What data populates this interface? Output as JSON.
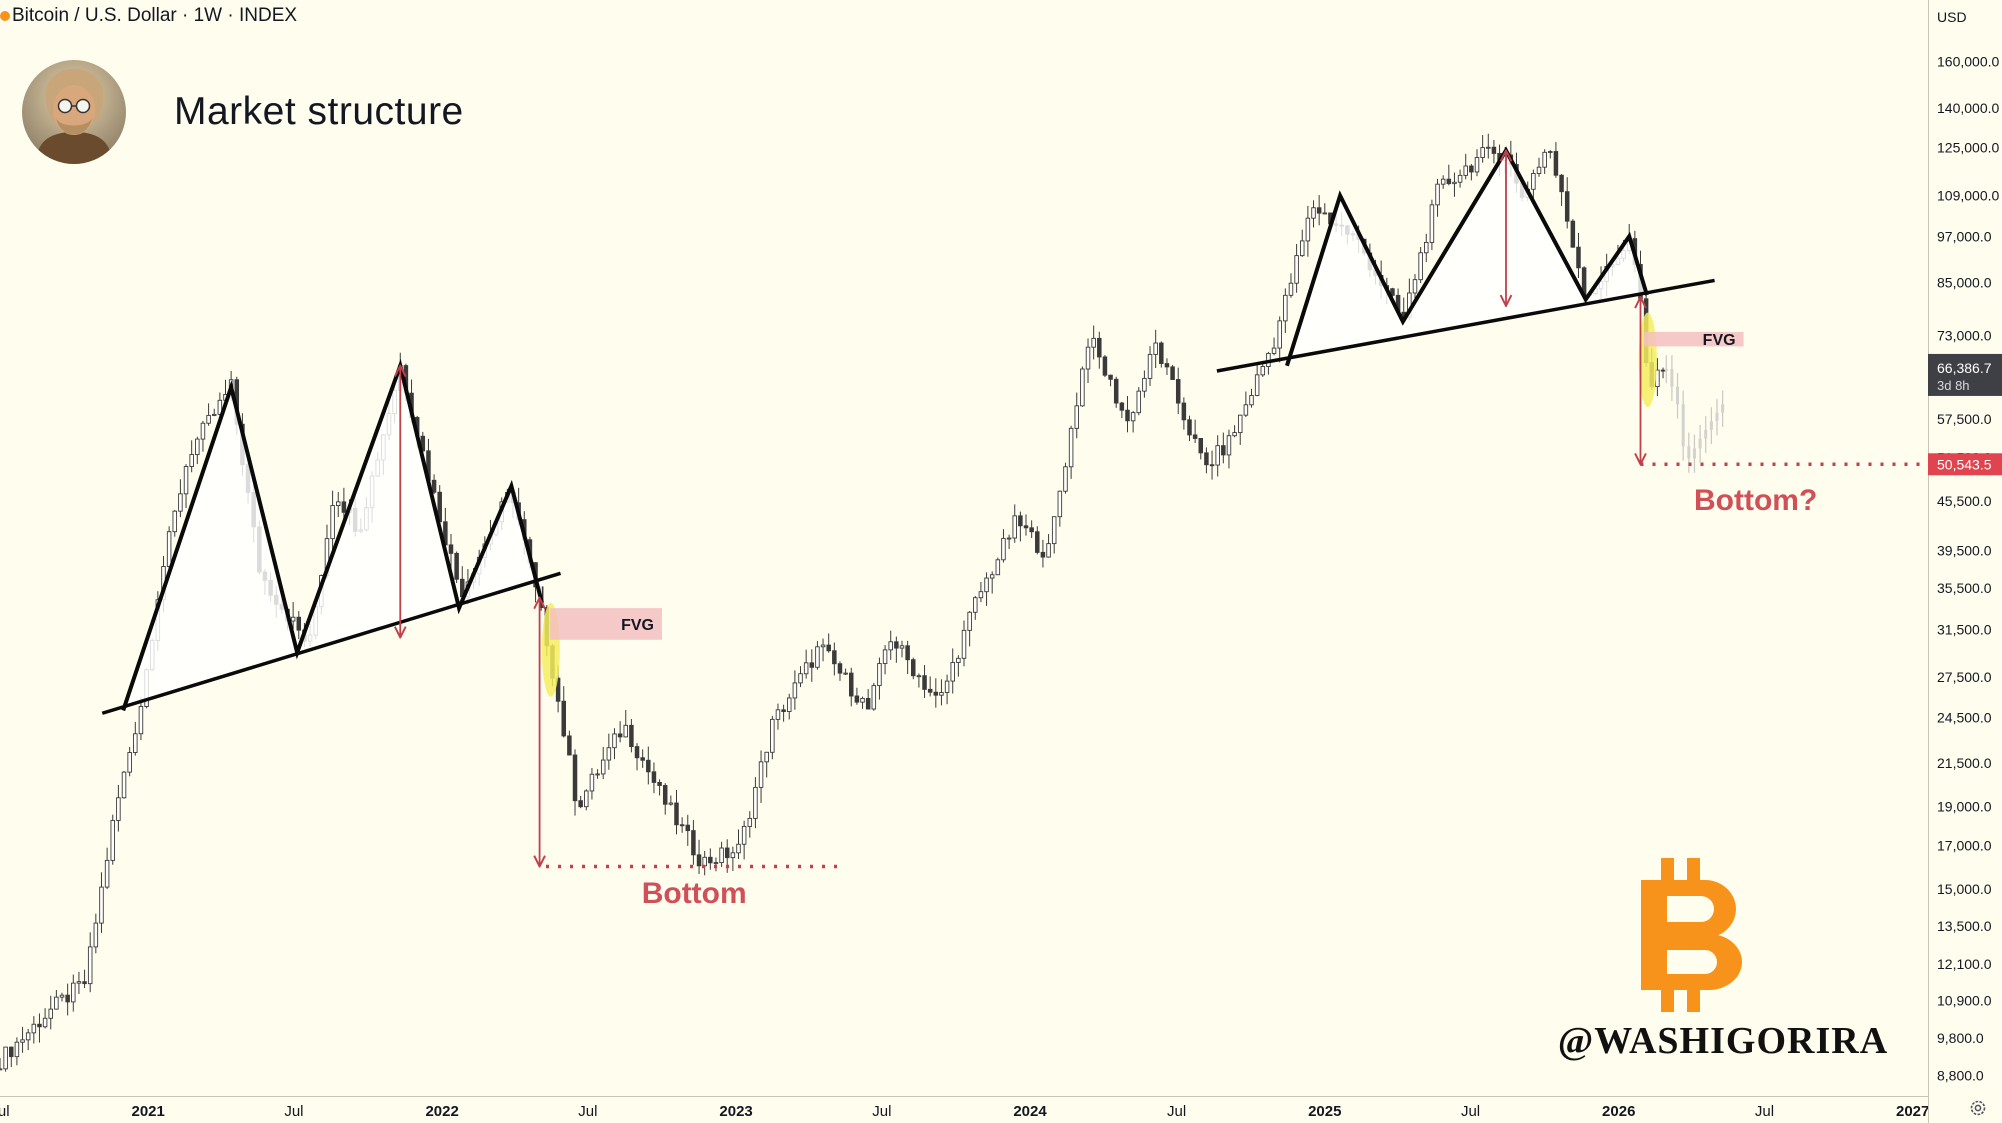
{
  "header": {
    "symbol": "Bitcoin / U.S. Dollar · 1W · INDEX",
    "title": "Market structure"
  },
  "price_axis": {
    "currency": "USD"
  },
  "annotations": {
    "fvg_label": "FVG",
    "bottom_label": "Bottom",
    "bottom_question_label": "Bottom?"
  },
  "watermark": {
    "handle": "@WASHIGORIRA",
    "logo": "bitcoin-logo"
  },
  "last_price": {
    "value": "66,386.7",
    "countdown": "3d 8h"
  },
  "target_price": {
    "value": "50,543.5"
  },
  "colors": {
    "background": "#fffdee",
    "candle": "#3a3a3a",
    "arrow": "#c0404c",
    "bottom_text": "#d05058",
    "fvg_fill": "#f3c0bf",
    "highlight": "#f4ee5e",
    "bitcoin_orange": "#f7931a"
  },
  "chart_data": {
    "type": "candlestick",
    "timeframe": "1W",
    "y_axis": {
      "scale": "log",
      "range": [
        8300,
        175000
      ],
      "ticks": [
        "160,000.0",
        "140,000.0",
        "125,000.0",
        "109,000.0",
        "97,000.0",
        "85,000.0",
        "73,000.0",
        "57,500.0",
        "51,500.0",
        "45,500.0",
        "39,500.0",
        "35,500.0",
        "31,500.0",
        "27,500.0",
        "24,500.0",
        "21,500.0",
        "19,000.0",
        "17,000.0",
        "15,000.0",
        "13,500.0",
        "12,100.0",
        "10,900.0",
        "9,800.0",
        "8,800.0"
      ]
    },
    "x_axis": {
      "range": [
        "2020-07-01",
        "2027-01-20"
      ],
      "ticks": [
        {
          "label": "Jul",
          "date": "2020-07-01"
        },
        {
          "label": "2021",
          "date": "2021-01-01"
        },
        {
          "label": "Jul",
          "date": "2021-07-01"
        },
        {
          "label": "2022",
          "date": "2022-01-01"
        },
        {
          "label": "Jul",
          "date": "2022-07-01"
        },
        {
          "label": "2023",
          "date": "2023-01-01"
        },
        {
          "label": "Jul",
          "date": "2023-07-01"
        },
        {
          "label": "2024",
          "date": "2024-01-01"
        },
        {
          "label": "Jul",
          "date": "2024-07-01"
        },
        {
          "label": "2025",
          "date": "2025-01-01"
        },
        {
          "label": "Jul",
          "date": "2025-07-01"
        },
        {
          "label": "2026",
          "date": "2026-01-01"
        },
        {
          "label": "Jul",
          "date": "2026-07-01"
        },
        {
          "label": "2027",
          "date": "2027-01-01"
        }
      ]
    },
    "price_path": [
      [
        "2020-07-01",
        9200
      ],
      [
        "2020-09-01",
        10600
      ],
      [
        "2020-10-15",
        11500
      ],
      [
        "2020-11-20",
        18500
      ],
      [
        "2020-12-25",
        26000
      ],
      [
        "2021-01-15",
        36000
      ],
      [
        "2021-02-20",
        52000
      ],
      [
        "2021-04-14",
        63000
      ],
      [
        "2021-05-20",
        37000
      ],
      [
        "2021-07-20",
        30000
      ],
      [
        "2021-08-20",
        47000
      ],
      [
        "2021-09-20",
        42000
      ],
      [
        "2021-11-10",
        67000
      ],
      [
        "2021-12-20",
        47000
      ],
      [
        "2022-01-24",
        35000
      ],
      [
        "2022-03-28",
        47000
      ],
      [
        "2022-05-10",
        31000
      ],
      [
        "2022-06-18",
        19000
      ],
      [
        "2022-08-15",
        24000
      ],
      [
        "2022-10-01",
        19500
      ],
      [
        "2022-11-20",
        16200
      ],
      [
        "2023-01-05",
        16800
      ],
      [
        "2023-02-15",
        24000
      ],
      [
        "2023-04-15",
        30000
      ],
      [
        "2023-06-15",
        25000
      ],
      [
        "2023-07-10",
        31000
      ],
      [
        "2023-09-10",
        25500
      ],
      [
        "2023-10-25",
        34000
      ],
      [
        "2023-12-15",
        43000
      ],
      [
        "2024-01-23",
        39000
      ],
      [
        "2024-03-14",
        73000
      ],
      [
        "2024-05-01",
        57000
      ],
      [
        "2024-06-05",
        71000
      ],
      [
        "2024-08-05",
        50000
      ],
      [
        "2024-09-05",
        54000
      ],
      [
        "2024-10-30",
        72000
      ],
      [
        "2024-12-17",
        106000
      ],
      [
        "2025-02-10",
        96000
      ],
      [
        "2025-04-08",
        76000
      ],
      [
        "2025-05-22",
        111000
      ],
      [
        "2025-07-14",
        122000
      ],
      [
        "2025-08-14",
        124000
      ],
      [
        "2025-09-01",
        108000
      ],
      [
        "2025-10-06",
        126000
      ],
      [
        "2025-11-21",
        82000
      ],
      [
        "2025-12-20",
        88000
      ],
      [
        "2026-01-14",
        97000
      ],
      [
        "2026-02-01",
        77000
      ],
      [
        "2026-02-06",
        60000
      ],
      [
        "2026-02-20",
        67000
      ],
      [
        "2026-03-01",
        66386.7
      ]
    ],
    "projection_path": [
      [
        "2026-03-01",
        66386.7
      ],
      [
        "2026-03-15",
        60000
      ],
      [
        "2026-03-25",
        50543.5
      ],
      [
        "2026-04-10",
        54000
      ],
      [
        "2026-04-25",
        57000
      ],
      [
        "2026-05-10",
        60000
      ]
    ],
    "patterns": [
      {
        "zigzag": [
          [
            "2020-12-01",
            25000
          ],
          [
            "2021-04-14",
            63000
          ],
          [
            "2021-07-05",
            29500
          ],
          [
            "2021-11-10",
            67000
          ],
          [
            "2022-01-22",
            33500
          ],
          [
            "2022-03-28",
            47500
          ],
          [
            "2022-05-05",
            34000
          ]
        ],
        "neckline": [
          [
            "2020-11-05",
            24800
          ],
          [
            "2022-05-28",
            37000
          ]
        ],
        "measure": {
          "date": "2021-11-10",
          "top": 67000,
          "bottom": 30800
        },
        "drop": {
          "date": "2022-05-02",
          "top": 34500,
          "bottom": 16000
        },
        "bottom_line": {
          "from": "2022-05-10",
          "to": "2023-05-15",
          "price": 16000
        },
        "fvg": {
          "from": "2022-05-15",
          "to": "2022-10-01",
          "top": 33500,
          "bottom": 30600
        },
        "highlight": {
          "date": "2022-05-16",
          "top": 34000,
          "bottom": 26000
        },
        "bottom_text_at": [
          "2022-11-10",
          14800
        ]
      },
      {
        "zigzag": [
          [
            "2024-11-15",
            67000
          ],
          [
            "2025-01-20",
            109000
          ],
          [
            "2025-04-08",
            76000
          ],
          [
            "2025-08-14",
            124000
          ],
          [
            "2025-11-21",
            81000
          ],
          [
            "2026-01-14",
            97000
          ],
          [
            "2026-02-05",
            82000
          ]
        ],
        "neckline": [
          [
            "2024-08-20",
            66000
          ],
          [
            "2026-04-30",
            85500
          ]
        ],
        "measure": {
          "date": "2025-08-14",
          "top": 124000,
          "bottom": 79500
        },
        "drop": {
          "date": "2026-01-28",
          "top": 81500,
          "bottom": 50543.5
        },
        "bottom_line": {
          "from": "2026-01-28",
          "to": "2027-01-20",
          "price": 50543.5
        },
        "fvg": {
          "from": "2026-02-01",
          "to": "2026-06-05",
          "top": 73800,
          "bottom": 70800
        },
        "highlight": {
          "date": "2026-02-06",
          "top": 78000,
          "bottom": 59500
        },
        "bottom_text_at": [
          "2026-06-20",
          45500
        ]
      }
    ]
  }
}
